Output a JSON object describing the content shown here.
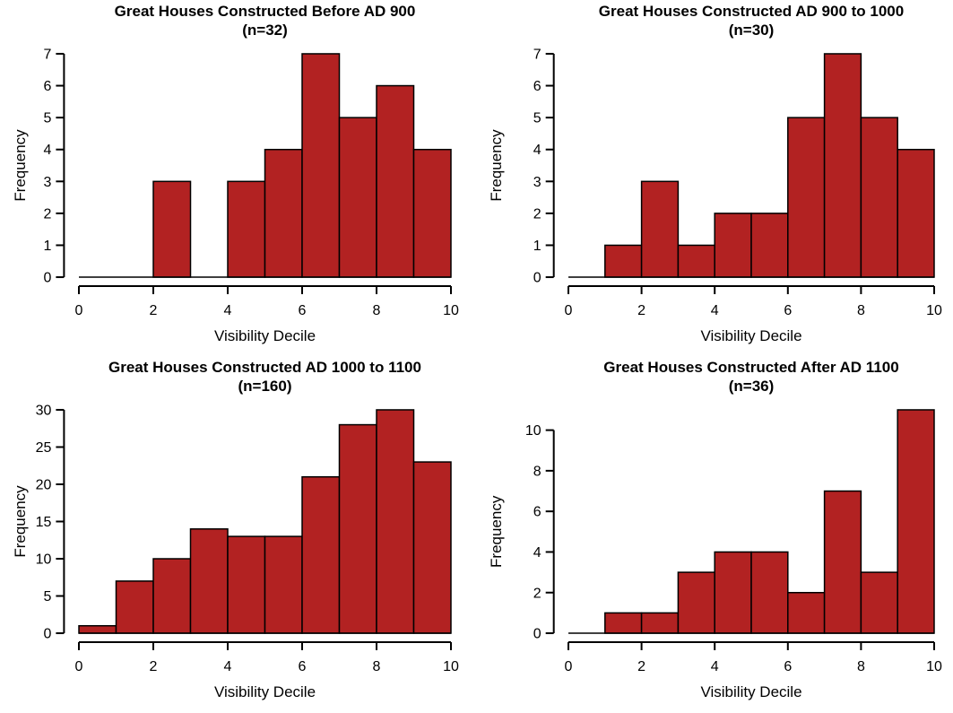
{
  "figure": {
    "background": "#ffffff",
    "bar_fill": "#b22222",
    "bar_border": "#000000",
    "axis_color": "#000000",
    "text_color": "#000000"
  },
  "chart_data": [
    {
      "type": "bar",
      "title": "Great Houses Constructed Before AD 900",
      "subtitle": "(n=32)",
      "n": 32,
      "xlabel": "Visibility Decile",
      "ylabel": "Frequency",
      "categories": [
        "0-1",
        "1-2",
        "2-3",
        "3-4",
        "4-5",
        "5-6",
        "6-7",
        "7-8",
        "8-9",
        "9-10"
      ],
      "values": [
        0,
        0,
        3,
        0,
        3,
        4,
        7,
        5,
        6,
        4
      ],
      "xlim": [
        0,
        10
      ],
      "ylim": [
        0,
        7
      ],
      "x_ticks": [
        0,
        2,
        4,
        6,
        8,
        10
      ],
      "y_ticks": [
        0,
        1,
        2,
        3,
        4,
        5,
        6,
        7
      ],
      "grid": false,
      "legend": "none"
    },
    {
      "type": "bar",
      "title": "Great Houses Constructed AD 900 to 1000",
      "subtitle": "(n=30)",
      "n": 30,
      "xlabel": "Visibility Decile",
      "ylabel": "Frequency",
      "categories": [
        "0-1",
        "1-2",
        "2-3",
        "3-4",
        "4-5",
        "5-6",
        "6-7",
        "7-8",
        "8-9",
        "9-10"
      ],
      "values": [
        0,
        1,
        3,
        1,
        2,
        2,
        5,
        7,
        5,
        4
      ],
      "xlim": [
        0,
        10
      ],
      "ylim": [
        0,
        7
      ],
      "x_ticks": [
        0,
        2,
        4,
        6,
        8,
        10
      ],
      "y_ticks": [
        0,
        1,
        2,
        3,
        4,
        5,
        6,
        7
      ],
      "grid": false,
      "legend": "none"
    },
    {
      "type": "bar",
      "title": "Great Houses Constructed AD 1000 to 1100",
      "subtitle": "(n=160)",
      "n": 160,
      "xlabel": "Visibility Decile",
      "ylabel": "Frequency",
      "categories": [
        "0-1",
        "1-2",
        "2-3",
        "3-4",
        "4-5",
        "5-6",
        "6-7",
        "7-8",
        "8-9",
        "9-10"
      ],
      "values": [
        1,
        7,
        10,
        14,
        13,
        13,
        21,
        28,
        30,
        23
      ],
      "xlim": [
        0,
        10
      ],
      "ylim": [
        0,
        30
      ],
      "x_ticks": [
        0,
        2,
        4,
        6,
        8,
        10
      ],
      "y_ticks": [
        0,
        5,
        10,
        15,
        20,
        25,
        30
      ],
      "grid": false,
      "legend": "none"
    },
    {
      "type": "bar",
      "title": "Great Houses Constructed After AD 1100",
      "subtitle": "(n=36)",
      "n": 36,
      "xlabel": "Visibility Decile",
      "ylabel": "Frequency",
      "categories": [
        "0-1",
        "1-2",
        "2-3",
        "3-4",
        "4-5",
        "5-6",
        "6-7",
        "7-8",
        "8-9",
        "9-10"
      ],
      "values": [
        0,
        1,
        1,
        3,
        4,
        4,
        2,
        7,
        3,
        11
      ],
      "xlim": [
        0,
        11
      ],
      "ylim": [
        0,
        11
      ],
      "x_ticks": [
        0,
        2,
        4,
        6,
        8,
        10
      ],
      "y_ticks": [
        0,
        2,
        4,
        6,
        8,
        10
      ],
      "grid": false,
      "legend": "none"
    }
  ]
}
